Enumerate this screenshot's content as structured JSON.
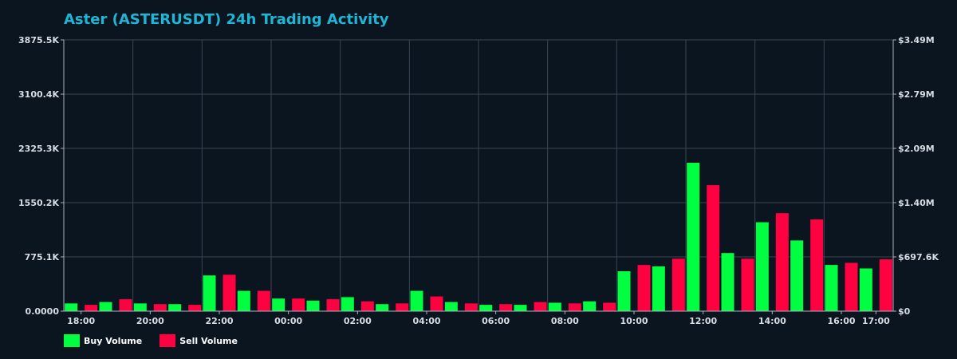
{
  "chart_data": {
    "type": "bar",
    "title": "Aster (ASTERUSDT) 24h Trading Activity",
    "left_axis": {
      "ylim": [
        0,
        3875.5
      ],
      "unit_note": "K",
      "tick_values": [
        0,
        775.1,
        1550.2,
        2325.3,
        3100.4,
        3875.5
      ],
      "tick_labels": [
        "0.0000",
        "775.1K",
        "1550.2K",
        "2325.3K",
        "3100.4K",
        "3875.5K"
      ]
    },
    "right_axis": {
      "ylim": [
        0,
        3.49
      ],
      "tick_labels": [
        "$0",
        "$697.6K",
        "$1.40M",
        "$2.09M",
        "$2.79M",
        "$3.49M"
      ]
    },
    "x_tick_labels": [
      {
        "label": "18:00",
        "pos": 0.5
      },
      {
        "label": "20:00",
        "pos": 2.5
      },
      {
        "label": "22:00",
        "pos": 4.5
      },
      {
        "label": "00:00",
        "pos": 6.5
      },
      {
        "label": "02:00",
        "pos": 8.5
      },
      {
        "label": "04:00",
        "pos": 10.5
      },
      {
        "label": "06:00",
        "pos": 12.5
      },
      {
        "label": "08:00",
        "pos": 14.5
      },
      {
        "label": "10:00",
        "pos": 16.5
      },
      {
        "label": "12:00",
        "pos": 18.5
      },
      {
        "label": "14:00",
        "pos": 20.5
      },
      {
        "label": "16:00",
        "pos": 22.5
      },
      {
        "label": "17:00",
        "pos": 23.5
      }
    ],
    "num_slots": 24,
    "grid": true,
    "legend_position": "bottom-left",
    "series": [
      {
        "name": "Buy Volume",
        "color": "#00ff41",
        "values": [
          110,
          130,
          110,
          100,
          510,
          290,
          180,
          150,
          200,
          100,
          290,
          130,
          90,
          90,
          120,
          140,
          570,
          640,
          2120,
          830,
          1270,
          1010,
          660,
          610
        ]
      },
      {
        "name": "Sell Volume",
        "color": "#ff0040",
        "values": [
          90,
          170,
          100,
          90,
          520,
          290,
          180,
          170,
          140,
          110,
          210,
          110,
          100,
          130,
          110,
          120,
          660,
          750,
          1800,
          750,
          1400,
          1310,
          690,
          740
        ]
      }
    ]
  },
  "colors": {
    "background": "#0b1520",
    "grid": "#3a4550",
    "axis": "#aab2bb",
    "title": "#1fb6d6"
  }
}
